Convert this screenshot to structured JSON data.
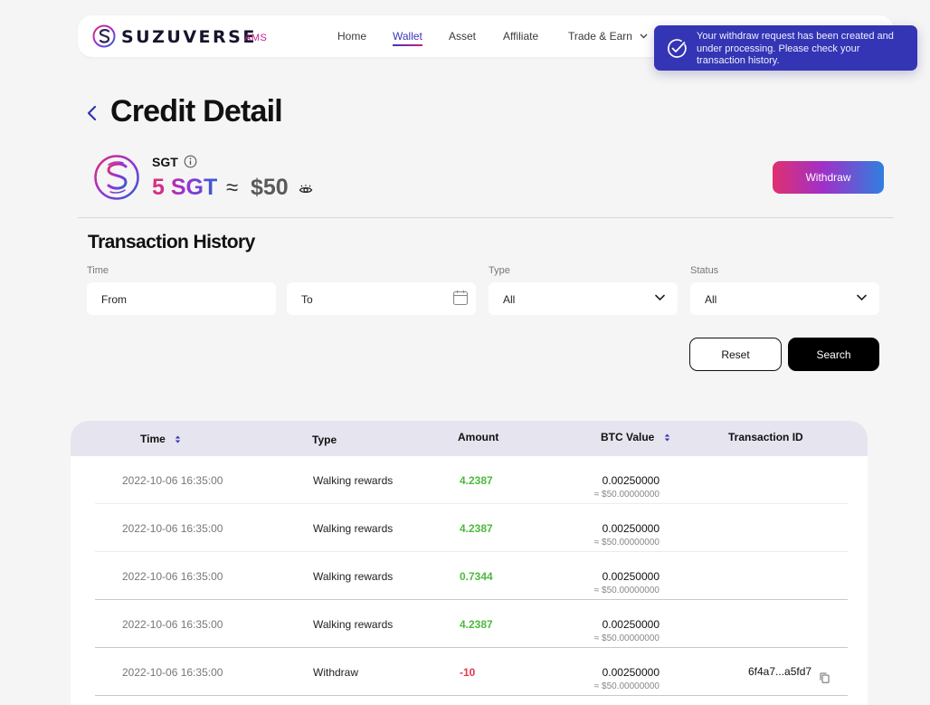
{
  "brand": {
    "name": "SUZUVERSE",
    "tag": "AMS"
  },
  "nav": {
    "items": [
      {
        "label": "Home"
      },
      {
        "label": "Wallet"
      },
      {
        "label": "Asset"
      },
      {
        "label": "Affiliate"
      },
      {
        "label": "Trade & Earn"
      }
    ],
    "active": "Wallet"
  },
  "toast": {
    "message": "Your withdraw request has been created and under processing. Please check your transaction history."
  },
  "page": {
    "title": "Credit Detail"
  },
  "balance": {
    "token": "SGT",
    "amount": "5 SGT",
    "approx": "≈",
    "usd": "$50"
  },
  "actions": {
    "withdraw_label": "Withdraw",
    "reset_label": "Reset",
    "search_label": "Search"
  },
  "history": {
    "title": "Transaction History",
    "filters": {
      "time_label": "Time",
      "from_placeholder": "From",
      "to_placeholder": "To",
      "type_label": "Type",
      "type_value": "All",
      "status_label": "Status",
      "status_value": "All"
    },
    "columns": {
      "time": "Time",
      "type": "Type",
      "amount": "Amount",
      "btc": "BTC Value",
      "txid": "Transaction ID"
    },
    "rows": [
      {
        "time": "2022-10-06 16:35:00",
        "type": "Walking rewards",
        "amount": "4.2387",
        "btc": "0.00250000",
        "usd": "≈ $50.00000000",
        "txid": ""
      },
      {
        "time": "2022-10-06 16:35:00",
        "type": "Walking rewards",
        "amount": "4.2387",
        "btc": "0.00250000",
        "usd": "≈ $50.00000000",
        "txid": ""
      },
      {
        "time": "2022-10-06 16:35:00",
        "type": "Walking rewards",
        "amount": "0.7344",
        "btc": "0.00250000",
        "usd": "≈ $50.00000000",
        "txid": ""
      },
      {
        "time": "2022-10-06 16:35:00",
        "type": "Walking rewards",
        "amount": "4.2387",
        "btc": "0.00250000",
        "usd": "≈ $50.00000000",
        "txid": ""
      },
      {
        "time": "2022-10-06 16:35:00",
        "type": "Withdraw",
        "amount": "-10",
        "btc": "0.00250000",
        "usd": "≈ $50.00000000",
        "txid": "6f4a7...a5fd7"
      }
    ]
  },
  "colors": {
    "accent": "#3435b4",
    "brand_pink": "#c2208c",
    "positive": "#4cba3e",
    "negative": "#e23a4a",
    "table_header": "#e5e4ef"
  }
}
